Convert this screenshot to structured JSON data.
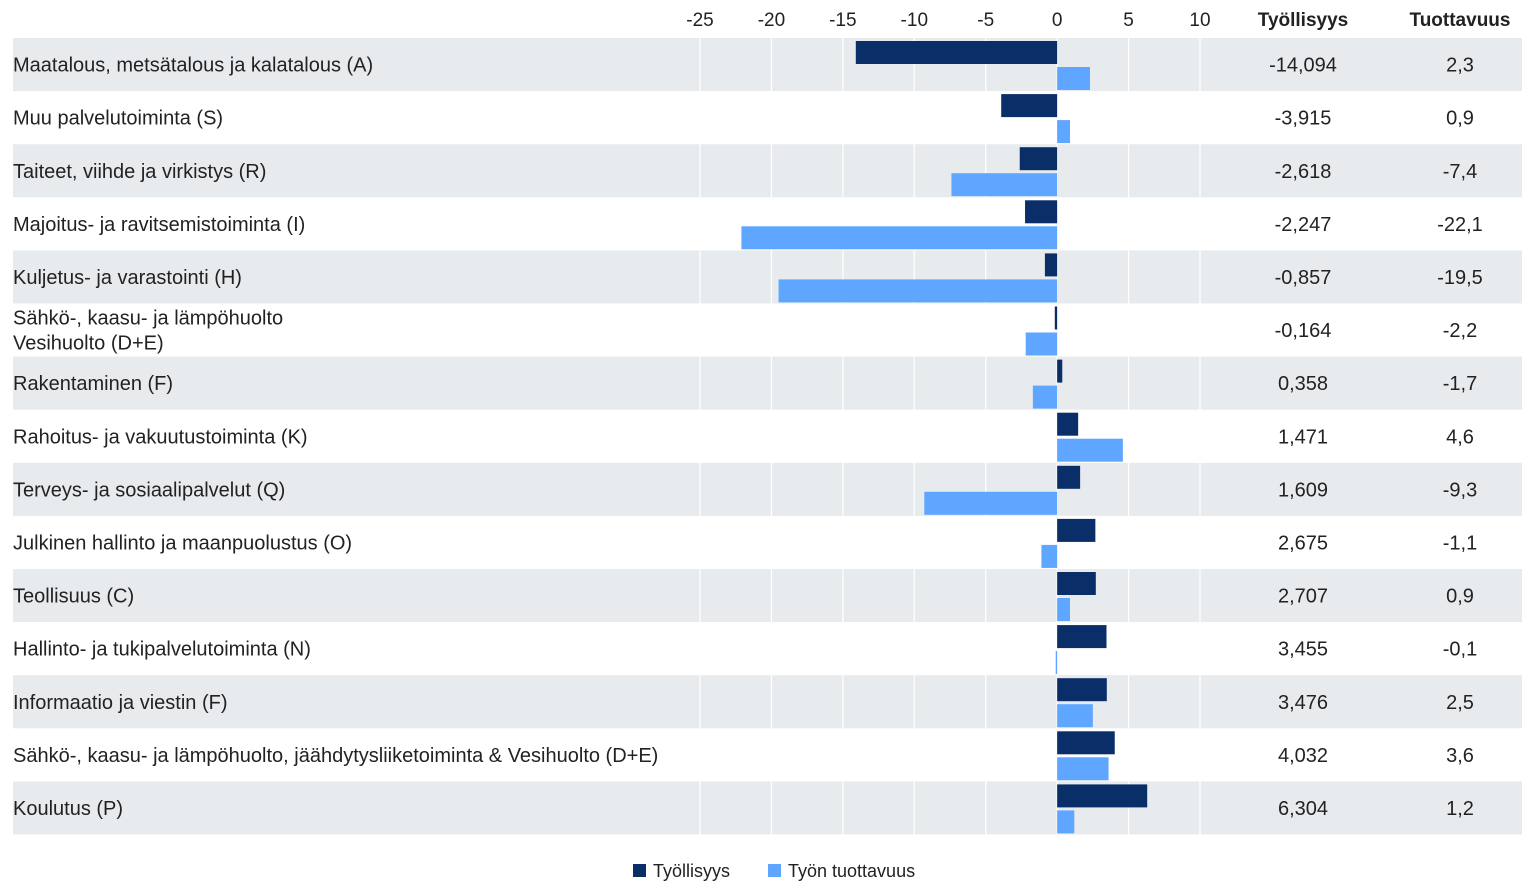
{
  "chart_data": {
    "type": "bar",
    "orientation": "horizontal",
    "categories": [
      "Maatalous, metsätalous ja kalatalous (A)",
      "Muu palvelutoiminta (S)",
      "Taiteet, viihde ja virkistys (R)",
      "Majoitus- ja ravitsemistoiminta (I)",
      "Kuljetus- ja varastointi (H)",
      "Sähkö-, kaasu- ja lämpöhuolto\nVesihuolto (D+E)",
      "Rakentaminen (F)",
      "Rahoitus- ja vakuutustoiminta (K)",
      "Terveys- ja sosiaalipalvelut (Q)",
      "Julkinen hallinto ja maanpuolustus (O)",
      "Teollisuus (C)",
      "Hallinto- ja tukipalvelutoiminta (N)",
      "Informaatio ja viestin (F)",
      "Sähkö-, kaasu- ja lämpöhuolto, jäähdytysliiketoiminta & Vesihuolto (D+E)",
      "Koulutus (P)"
    ],
    "series": [
      {
        "name": "Työllisyys",
        "color": "#0a2e68",
        "values": [
          -14.094,
          -3.915,
          -2.618,
          -2.247,
          -0.857,
          -0.164,
          0.358,
          1.471,
          1.609,
          2.675,
          2.707,
          3.455,
          3.476,
          4.032,
          6.304
        ]
      },
      {
        "name": "Työn tuottavuus",
        "color": "#5ea6ff",
        "values": [
          2.3,
          0.9,
          -7.4,
          -22.1,
          -19.5,
          -2.2,
          -1.7,
          4.6,
          -9.3,
          -1.1,
          0.9,
          -0.1,
          2.5,
          3.6,
          1.2
        ]
      }
    ],
    "xlim": [
      -25,
      10
    ],
    "xticks": [
      -25,
      -20,
      -15,
      -10,
      -5,
      0,
      5,
      10
    ],
    "grid": true,
    "legend_position": "bottom-center",
    "table_columns": [
      {
        "header": "Työllisyys",
        "values": [
          "-14,094",
          "-3,915",
          "-2,618",
          "-2,247",
          "-0,857",
          "-0,164",
          "0,358",
          "1,471",
          "1,609",
          "2,675",
          "2,707",
          "3,455",
          "3,476",
          "4,032",
          "6,304"
        ]
      },
      {
        "header": "Tuottavuus",
        "values": [
          "2,3",
          "0,9",
          "-7,4",
          "-22,1",
          "-19,5",
          "-2,2",
          "-1,7",
          "4,6",
          "-9,3",
          "-1,1",
          "0,9",
          "-0,1",
          "2,5",
          "3,6",
          "1,2"
        ]
      }
    ],
    "row_band_color": "#e8ebee",
    "grid_color": "#ffffff"
  }
}
